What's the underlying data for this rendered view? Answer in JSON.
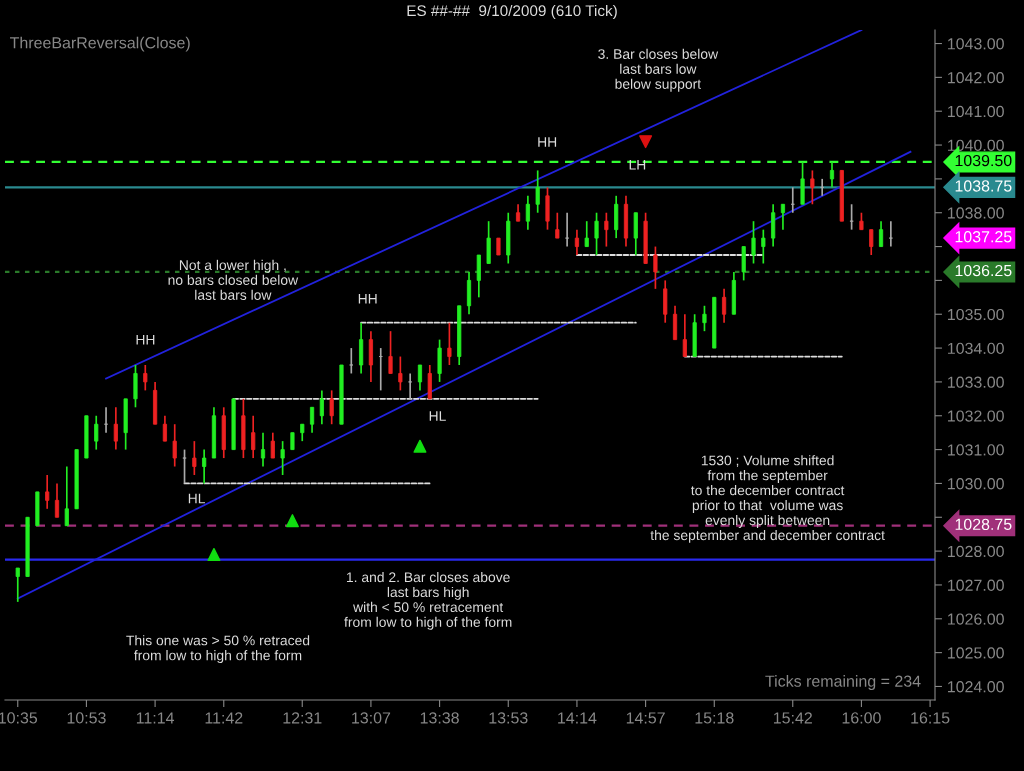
{
  "chart_data": {
    "type": "candlestick",
    "title": "ES ##-##  9/10/2009 (610 Tick)",
    "categories": [
      "10:35",
      null,
      null,
      null,
      null,
      null,
      null,
      "10:53",
      null,
      null,
      null,
      null,
      null,
      null,
      "11:14",
      null,
      null,
      null,
      null,
      null,
      null,
      "11:42",
      null,
      null,
      null,
      null,
      null,
      null,
      null,
      "12:31",
      null,
      null,
      null,
      null,
      null,
      null,
      "13:07",
      null,
      null,
      null,
      null,
      null,
      null,
      "13:38",
      null,
      null,
      null,
      null,
      null,
      null,
      "13:53",
      null,
      null,
      null,
      null,
      null,
      null,
      "14:14",
      null,
      null,
      null,
      null,
      null,
      null,
      "14:57",
      null,
      null,
      null,
      null,
      null,
      null,
      "15:18",
      null,
      null,
      null,
      null,
      null,
      null,
      null,
      "15:42",
      null,
      null,
      null,
      null,
      null,
      null,
      "16:00",
      null,
      null,
      null,
      null,
      null,
      null,
      "16:15"
    ],
    "ylim": [
      1023.6,
      1043.4
    ],
    "yticks": [
      {
        "value": 1024,
        "label": "1024.00"
      },
      {
        "value": 1025,
        "label": "1025.00"
      },
      {
        "value": 1026,
        "label": "1026.00"
      },
      {
        "value": 1027,
        "label": "1027.00"
      },
      {
        "value": 1028,
        "label": "1028.00"
      },
      {
        "value": 1029,
        "label": null
      },
      {
        "value": 1030,
        "label": "1030.00"
      },
      {
        "value": 1031,
        "label": "1031.00"
      },
      {
        "value": 1032,
        "label": "1032.00"
      },
      {
        "value": 1033,
        "label": "1033.00"
      },
      {
        "value": 1034,
        "label": "1034.00"
      },
      {
        "value": 1035,
        "label": "1035.00"
      },
      {
        "value": 1036,
        "label": null
      },
      {
        "value": 1037,
        "label": null
      },
      {
        "value": 1038,
        "label": "1038.00"
      },
      {
        "value": 1039,
        "label": null
      },
      {
        "value": 1040,
        "label": "1040.00"
      },
      {
        "value": 1041,
        "label": "1041.00"
      },
      {
        "value": 1042,
        "label": "1042.00"
      },
      {
        "value": 1043,
        "label": "1043.00"
      }
    ],
    "grid": false,
    "ohlc": [
      [
        1027.25,
        1027.5,
        1026.5,
        1027.5
      ],
      [
        1027.25,
        1029.0,
        1027.25,
        1029.0
      ],
      [
        1028.75,
        1029.75,
        1028.75,
        1029.75
      ],
      [
        1029.75,
        1030.25,
        1029.25,
        1029.5
      ],
      [
        1029.5,
        1030.0,
        1029.0,
        1029.0
      ],
      [
        1028.75,
        1030.5,
        1028.75,
        1029.25
      ],
      [
        1029.25,
        1031.0,
        1029.25,
        1031.0
      ],
      [
        1030.75,
        1032.0,
        1030.75,
        1032.0
      ],
      [
        1031.25,
        1032.0,
        1031.0,
        1031.75
      ],
      [
        1031.75,
        1032.25,
        1031.5,
        1031.75
      ],
      [
        1031.75,
        1032.25,
        1031.0,
        1031.25
      ],
      [
        1031.5,
        1032.5,
        1031.0,
        1032.5
      ],
      [
        1032.5,
        1033.5,
        1032.25,
        1033.25
      ],
      [
        1033.25,
        1033.5,
        1032.75,
        1033.0
      ],
      [
        1032.75,
        1033.0,
        1031.75,
        1031.75
      ],
      [
        1031.75,
        1032.0,
        1031.25,
        1031.25
      ],
      [
        1031.25,
        1031.75,
        1030.5,
        1030.75
      ],
      [
        1030.75,
        1031.0,
        1030.0,
        1030.75
      ],
      [
        1030.75,
        1031.25,
        1030.25,
        1030.5
      ],
      [
        1030.5,
        1031.0,
        1030.0,
        1030.75
      ],
      [
        1030.75,
        1032.25,
        1030.75,
        1032.0
      ],
      [
        1032.0,
        1032.25,
        1030.75,
        1031.0
      ],
      [
        1031.0,
        1032.5,
        1031.0,
        1032.5
      ],
      [
        1032.0,
        1032.5,
        1030.75,
        1031.0
      ],
      [
        1031.5,
        1032.0,
        1030.75,
        1031.0
      ],
      [
        1030.75,
        1031.5,
        1030.5,
        1031.0
      ],
      [
        1031.25,
        1031.5,
        1030.75,
        1030.75
      ],
      [
        1030.75,
        1031.25,
        1030.25,
        1031.0
      ],
      [
        1031.0,
        1031.5,
        1031.0,
        1031.5
      ],
      [
        1031.5,
        1031.75,
        1031.25,
        1031.75
      ],
      [
        1031.75,
        1032.25,
        1031.5,
        1032.25
      ],
      [
        1032.0,
        1032.75,
        1031.75,
        1032.5
      ],
      [
        1032.5,
        1032.75,
        1031.75,
        1032.0
      ],
      [
        1031.75,
        1033.5,
        1031.75,
        1033.5
      ],
      [
        1033.5,
        1034.0,
        1033.25,
        1033.5
      ],
      [
        1033.5,
        1034.75,
        1033.25,
        1034.25
      ],
      [
        1034.25,
        1034.5,
        1033.0,
        1033.5
      ],
      [
        1033.75,
        1034.0,
        1032.75,
        1033.75
      ],
      [
        1033.75,
        1034.5,
        1033.25,
        1033.25
      ],
      [
        1033.25,
        1033.75,
        1032.75,
        1033.0
      ],
      [
        1033.0,
        1033.25,
        1032.5,
        1033.0
      ],
      [
        1033.0,
        1033.5,
        1032.75,
        1033.5
      ],
      [
        1033.25,
        1033.5,
        1032.5,
        1032.5
      ],
      [
        1033.25,
        1034.25,
        1033.0,
        1034.0
      ],
      [
        1034.0,
        1034.75,
        1033.5,
        1033.75
      ],
      [
        1033.75,
        1035.25,
        1033.5,
        1035.25
      ],
      [
        1035.25,
        1036.25,
        1035.0,
        1036.0
      ],
      [
        1036.0,
        1036.75,
        1035.5,
        1036.75
      ],
      [
        1036.5,
        1037.75,
        1036.5,
        1037.25
      ],
      [
        1037.25,
        1037.25,
        1036.75,
        1036.75
      ],
      [
        1036.75,
        1038.0,
        1036.5,
        1037.75
      ],
      [
        1038.0,
        1038.25,
        1037.75,
        1037.75
      ],
      [
        1037.75,
        1038.5,
        1037.5,
        1038.25
      ],
      [
        1038.25,
        1039.25,
        1038.0,
        1038.75
      ],
      [
        1038.5,
        1038.75,
        1037.5,
        1037.75
      ],
      [
        1037.5,
        1038.0,
        1037.25,
        1037.25
      ],
      [
        1037.25,
        1038.0,
        1037.0,
        1037.25
      ],
      [
        1037.25,
        1037.5,
        1036.75,
        1037.0
      ],
      [
        1037.0,
        1037.75,
        1037.0,
        1037.25
      ],
      [
        1037.25,
        1038.0,
        1036.75,
        1037.75
      ],
      [
        1037.75,
        1038.0,
        1037.0,
        1037.5
      ],
      [
        1037.5,
        1038.5,
        1037.25,
        1038.25
      ],
      [
        1038.25,
        1038.5,
        1037.0,
        1037.25
      ],
      [
        1037.25,
        1038.0,
        1036.75,
        1038.0
      ],
      [
        1037.75,
        1038.0,
        1036.5,
        1036.5
      ],
      [
        1036.75,
        1037.0,
        1035.75,
        1036.25
      ],
      [
        1035.75,
        1036.0,
        1034.75,
        1035.0
      ],
      [
        1035.0,
        1035.25,
        1034.25,
        1034.25
      ],
      [
        1034.25,
        1035.0,
        1033.75,
        1033.75
      ],
      [
        1033.75,
        1035.0,
        1033.75,
        1034.75
      ],
      [
        1034.75,
        1035.25,
        1034.5,
        1035.0
      ],
      [
        1034.0,
        1035.5,
        1034.0,
        1035.5
      ],
      [
        1035.5,
        1035.75,
        1034.75,
        1035.0
      ],
      [
        1035.0,
        1036.25,
        1035.0,
        1036.0
      ],
      [
        1036.25,
        1037.0,
        1036.0,
        1037.0
      ],
      [
        1036.75,
        1037.75,
        1036.5,
        1037.25
      ],
      [
        1037.0,
        1037.5,
        1036.5,
        1037.25
      ],
      [
        1037.25,
        1038.25,
        1037.0,
        1038.0
      ],
      [
        1038.0,
        1038.25,
        1037.5,
        1038.25
      ],
      [
        1038.25,
        1038.75,
        1038.0,
        1038.25
      ],
      [
        1038.25,
        1039.5,
        1038.25,
        1039.0
      ],
      [
        1039.0,
        1039.25,
        1038.25,
        1038.75
      ],
      [
        1038.75,
        1039.0,
        1038.5,
        1038.75
      ],
      [
        1039.0,
        1039.5,
        1038.75,
        1039.25
      ],
      [
        1039.25,
        1039.25,
        1037.75,
        1037.75
      ],
      [
        1037.75,
        1038.25,
        1037.5,
        1037.75
      ],
      [
        1037.75,
        1038.0,
        1037.5,
        1037.5
      ],
      [
        1037.5,
        1037.5,
        1036.75,
        1037.0
      ],
      [
        1037.0,
        1037.75,
        1037.0,
        1037.5
      ],
      [
        1037.25,
        1037.75,
        1037.0,
        1037.25
      ],
      null,
      null,
      null,
      null
    ],
    "colors": [
      "#22ee22",
      "#22ee22",
      "#22ee22",
      "#ee2222",
      "#ee2222",
      "#22ee22",
      "#22ee22",
      "#22ee22",
      "#22ee22",
      "#aaaaaa",
      "#ee2222",
      "#22ee22",
      "#22ee22",
      "#ee2222",
      "#ee2222",
      "#ee2222",
      "#ee2222",
      "#aaaaaa",
      "#ee2222",
      "#22ee22",
      "#22ee22",
      "#ee2222",
      "#22ee22",
      "#ee2222",
      "#ee2222",
      "#22ee22",
      "#ee2222",
      "#22ee22",
      "#22ee22",
      "#22ee22",
      "#22ee22",
      "#22ee22",
      "#ee2222",
      "#22ee22",
      "#aaaaaa",
      "#22ee22",
      "#ee2222",
      "#aaaaaa",
      "#ee2222",
      "#ee2222",
      "#aaaaaa",
      "#22ee22",
      "#ee2222",
      "#22ee22",
      "#ee2222",
      "#22ee22",
      "#22ee22",
      "#22ee22",
      "#22ee22",
      "#ee2222",
      "#22ee22",
      "#ee2222",
      "#22ee22",
      "#22ee22",
      "#ee2222",
      "#ee2222",
      "#aaaaaa",
      "#ee2222",
      "#22ee22",
      "#22ee22",
      "#ee2222",
      "#22ee22",
      "#ee2222",
      "#22ee22",
      "#ee2222",
      "#ee2222",
      "#ee2222",
      "#ee2222",
      "#ee2222",
      "#22ee22",
      "#22ee22",
      "#22ee22",
      "#ee2222",
      "#22ee22",
      "#22ee22",
      "#22ee22",
      "#22ee22",
      "#22ee22",
      "#22ee22",
      "#aaaaaa",
      "#22ee22",
      "#ee2222",
      "#aaaaaa",
      "#22ee22",
      "#ee2222",
      "#aaaaaa",
      "#ee2222",
      "#ee2222",
      "#22ee22",
      "#aaaaaa",
      null,
      null,
      null,
      null
    ],
    "series": [
      {
        "type": "line",
        "color": "#2222dd",
        "line_style": "solid",
        "values": [
          null,
          null,
          null,
          null,
          null,
          null,
          null,
          null,
          null,
          1033.1,
          null,
          null,
          null,
          null,
          null,
          null,
          null,
          null,
          null,
          null,
          null,
          null,
          null,
          null,
          null,
          null,
          null,
          null,
          null,
          null,
          null,
          null,
          null,
          null,
          null,
          null,
          null,
          null,
          null,
          null,
          null,
          null,
          null,
          null,
          null,
          null,
          null,
          null,
          null,
          null,
          null,
          null,
          null,
          null,
          null,
          null,
          null,
          null,
          null,
          null,
          null,
          null,
          null,
          null,
          null,
          null,
          null,
          null,
          null,
          null,
          null,
          null,
          null,
          null,
          null,
          null,
          null,
          null,
          null,
          null,
          null,
          null,
          null,
          null,
          null,
          null,
          1043.4,
          null,
          null,
          null,
          null,
          null,
          null,
          null
        ]
      },
      {
        "type": "line",
        "color": "#2222dd",
        "line_style": "solid",
        "values": [
          1026.6,
          null,
          null,
          null,
          null,
          null,
          null,
          null,
          null,
          null,
          null,
          null,
          null,
          null,
          null,
          null,
          null,
          null,
          null,
          null,
          null,
          null,
          null,
          null,
          null,
          null,
          null,
          null,
          null,
          null,
          null,
          null,
          null,
          null,
          null,
          null,
          null,
          null,
          null,
          null,
          null,
          null,
          null,
          null,
          null,
          null,
          null,
          null,
          null,
          null,
          null,
          null,
          null,
          null,
          null,
          null,
          null,
          null,
          null,
          null,
          null,
          null,
          null,
          null,
          null,
          null,
          null,
          null,
          null,
          null,
          null,
          null,
          null,
          null,
          null,
          null,
          null,
          null,
          null,
          null,
          null,
          null,
          null,
          null,
          null,
          null,
          null,
          null,
          null,
          null,
          null,
          1039.8,
          null,
          null
        ]
      },
      {
        "type": "line",
        "color": "#dddddd",
        "line_style": "dashed",
        "values": [
          null,
          null,
          null,
          null,
          null,
          null,
          null,
          null,
          null,
          null,
          null,
          null,
          null,
          null,
          null,
          null,
          null,
          1030.0,
          1030.0,
          1030.0,
          1030.0,
          1030.0,
          1030.0,
          1030.0,
          1030.0,
          1030.0,
          1030.0,
          1030.0,
          1030.0,
          1030.0,
          1030.0,
          1030.0,
          1030.0,
          1030.0,
          1030.0,
          1030.0,
          1030.0,
          1030.0,
          1030.0,
          1030.0,
          1030.0,
          1030.0,
          1030.0,
          null,
          null,
          null,
          null,
          null,
          null,
          null,
          null,
          null,
          null,
          null,
          null,
          null,
          null,
          null,
          null,
          null,
          null,
          null,
          null,
          null,
          null,
          null,
          null,
          null,
          null,
          null,
          null,
          null,
          null,
          null,
          null,
          null,
          null,
          null,
          null,
          null,
          null,
          null,
          null,
          null,
          null,
          null,
          null,
          null,
          null,
          null,
          null,
          null,
          null,
          null
        ]
      },
      {
        "type": "line",
        "color": "#dddddd",
        "line_style": "dashed",
        "values": [
          null,
          null,
          null,
          null,
          null,
          null,
          null,
          null,
          null,
          null,
          null,
          null,
          null,
          null,
          null,
          null,
          null,
          null,
          null,
          null,
          null,
          null,
          1032.5,
          1032.5,
          1032.5,
          1032.5,
          1032.5,
          1032.5,
          1032.5,
          1032.5,
          1032.5,
          1032.5,
          1032.5,
          1032.5,
          1032.5,
          1032.5,
          1032.5,
          1032.5,
          1032.5,
          1032.5,
          1032.5,
          1032.5,
          1032.5,
          1032.5,
          1032.5,
          1032.5,
          1032.5,
          1032.5,
          1032.5,
          1032.5,
          1032.5,
          1032.5,
          1032.5,
          1032.5,
          null,
          null,
          null,
          null,
          null,
          null,
          null,
          null,
          null,
          null,
          null,
          null,
          null,
          null,
          null,
          null,
          null,
          null,
          null,
          null,
          null,
          null,
          null,
          null,
          null,
          null,
          null,
          null,
          null,
          null,
          null,
          null,
          null,
          null,
          null,
          null,
          null,
          null,
          null,
          null
        ]
      },
      {
        "type": "line",
        "color": "#dddddd",
        "line_style": "dashed",
        "values": [
          null,
          null,
          null,
          null,
          null,
          null,
          null,
          null,
          null,
          null,
          null,
          null,
          null,
          null,
          null,
          null,
          null,
          null,
          null,
          null,
          null,
          null,
          null,
          null,
          null,
          null,
          null,
          null,
          null,
          null,
          null,
          null,
          null,
          null,
          null,
          1034.75,
          1034.75,
          1034.75,
          1034.75,
          1034.75,
          1034.75,
          1034.75,
          1034.75,
          1034.75,
          1034.75,
          1034.75,
          1034.75,
          1034.75,
          1034.75,
          1034.75,
          1034.75,
          1034.75,
          1034.75,
          1034.75,
          1034.75,
          1034.75,
          1034.75,
          1034.75,
          1034.75,
          1034.75,
          1034.75,
          1034.75,
          1034.75,
          1034.75,
          null,
          null,
          null,
          null,
          null,
          null,
          null,
          null,
          null,
          null,
          null,
          null,
          null,
          null,
          null,
          null,
          null,
          null,
          null,
          null,
          null,
          null,
          null,
          null,
          null,
          null,
          null,
          null,
          null,
          null
        ]
      },
      {
        "type": "line",
        "color": "#dddddd",
        "line_style": "dashed",
        "values": [
          null,
          null,
          null,
          null,
          null,
          null,
          null,
          null,
          null,
          null,
          null,
          null,
          null,
          null,
          null,
          null,
          null,
          null,
          null,
          null,
          null,
          null,
          null,
          null,
          null,
          null,
          null,
          null,
          null,
          null,
          null,
          null,
          null,
          null,
          null,
          null,
          null,
          null,
          null,
          null,
          null,
          null,
          null,
          null,
          null,
          null,
          null,
          null,
          null,
          null,
          null,
          null,
          null,
          null,
          null,
          null,
          null,
          1036.75,
          1036.75,
          1036.75,
          1036.75,
          1036.75,
          1036.75,
          1036.75,
          1036.75,
          1036.75,
          1036.75,
          1036.75,
          1036.75,
          1036.75,
          1036.75,
          1036.75,
          1036.75,
          1036.75,
          1036.75,
          1036.75,
          1036.75,
          null,
          null,
          null,
          null,
          null,
          null,
          null,
          null,
          null,
          null,
          null,
          null,
          null,
          null,
          null,
          null,
          null
        ]
      },
      {
        "type": "line",
        "color": "#dddddd",
        "line_style": "dashed",
        "values": [
          null,
          null,
          null,
          null,
          null,
          null,
          null,
          null,
          null,
          null,
          null,
          null,
          null,
          null,
          null,
          null,
          null,
          null,
          null,
          null,
          null,
          null,
          null,
          null,
          null,
          null,
          null,
          null,
          null,
          null,
          null,
          null,
          null,
          null,
          null,
          null,
          null,
          null,
          null,
          null,
          null,
          null,
          null,
          null,
          null,
          null,
          null,
          null,
          null,
          null,
          null,
          null,
          null,
          null,
          null,
          null,
          null,
          null,
          null,
          null,
          null,
          null,
          null,
          null,
          null,
          null,
          null,
          null,
          1033.75,
          1033.75,
          1033.75,
          1033.75,
          1033.75,
          1033.75,
          1033.75,
          1033.75,
          1033.75,
          1033.75,
          1033.75,
          1033.75,
          1033.75,
          1033.75,
          1033.75,
          1033.75,
          1033.75,
          null,
          null,
          null,
          null,
          null,
          null,
          null,
          null,
          null
        ]
      },
      {
        "type": "scatter",
        "color": "#11dd11",
        "marker": "triangle",
        "values": [
          null,
          null,
          null,
          null,
          null,
          null,
          null,
          null,
          null,
          null,
          null,
          null,
          null,
          null,
          null,
          null,
          null,
          null,
          null,
          null,
          1027.9,
          null,
          null,
          null,
          null,
          null,
          null,
          null,
          1028.9,
          null,
          null,
          null,
          null,
          null,
          null,
          null,
          null,
          null,
          null,
          null,
          null,
          1031.1,
          null,
          null,
          null,
          null,
          null,
          null,
          null,
          null,
          null,
          null,
          null,
          null,
          null,
          null,
          null,
          null,
          null,
          null,
          null,
          null,
          null,
          null,
          null,
          null,
          null,
          null,
          null,
          null,
          null,
          null,
          null,
          null,
          null,
          null,
          null,
          null,
          null,
          null,
          null,
          null,
          null,
          null,
          null,
          null,
          null,
          null,
          null,
          null,
          null,
          null,
          null,
          null
        ]
      },
      {
        "type": "scatter",
        "color": "#dd1111",
        "marker": "triangle_down",
        "values": [
          null,
          null,
          null,
          null,
          null,
          null,
          null,
          null,
          null,
          null,
          null,
          null,
          null,
          null,
          null,
          null,
          null,
          null,
          null,
          null,
          null,
          null,
          null,
          null,
          null,
          null,
          null,
          null,
          null,
          null,
          null,
          null,
          null,
          null,
          null,
          null,
          null,
          null,
          null,
          null,
          null,
          null,
          null,
          null,
          null,
          null,
          null,
          null,
          null,
          null,
          null,
          null,
          null,
          null,
          null,
          null,
          null,
          null,
          null,
          null,
          null,
          null,
          null,
          null,
          1040.1,
          null,
          null,
          null,
          null,
          null,
          null,
          null,
          null,
          null,
          null,
          null,
          null,
          null,
          null,
          null,
          null,
          null,
          null,
          null,
          null,
          null,
          null,
          null,
          null,
          null,
          null,
          null,
          null,
          null
        ]
      }
    ],
    "ref_lines": [
      {
        "axis": "y",
        "value": 1039.5,
        "label": "1039.50",
        "color": "#33ff33",
        "line_style": "dashed"
      },
      {
        "axis": "y",
        "value": 1038.75,
        "label": "1038.75",
        "color": "#2a8a8f",
        "line_style": "solid"
      },
      {
        "axis": "y",
        "value": 1036.25,
        "label": "1036.25",
        "color": "#2a7a2a",
        "line_style": "dotted"
      },
      {
        "axis": "y",
        "value": 1028.75,
        "label": "1028.75",
        "color": "#a0307a",
        "line_style": "dashed"
      },
      {
        "axis": "y",
        "value": 1027.75,
        "color": "#2a2aee",
        "line_style": "solid"
      }
    ],
    "annotations": [
      "ThreeBarReversal(Close)",
      "Ticks remaining = 234",
      "HH",
      "HL",
      "Not a lower high ,\nno bars closed below\nlast bars low",
      "HH",
      "HL",
      "HH",
      "LH",
      "3. Bar closes below\nlast bars low\nbelow support",
      "1530 ; Volume shifted\nfrom the september\nto the december contract\nprior to that  volume was\nevenly split between\nthe september and december contract",
      "1. and 2. Bar closes above\nlast bars high\nwith < 50 % retracement\nfrom low to high of the form",
      "This one was > 50 % retraced\nfrom low to high of the form",
      "1037.25"
    ]
  }
}
